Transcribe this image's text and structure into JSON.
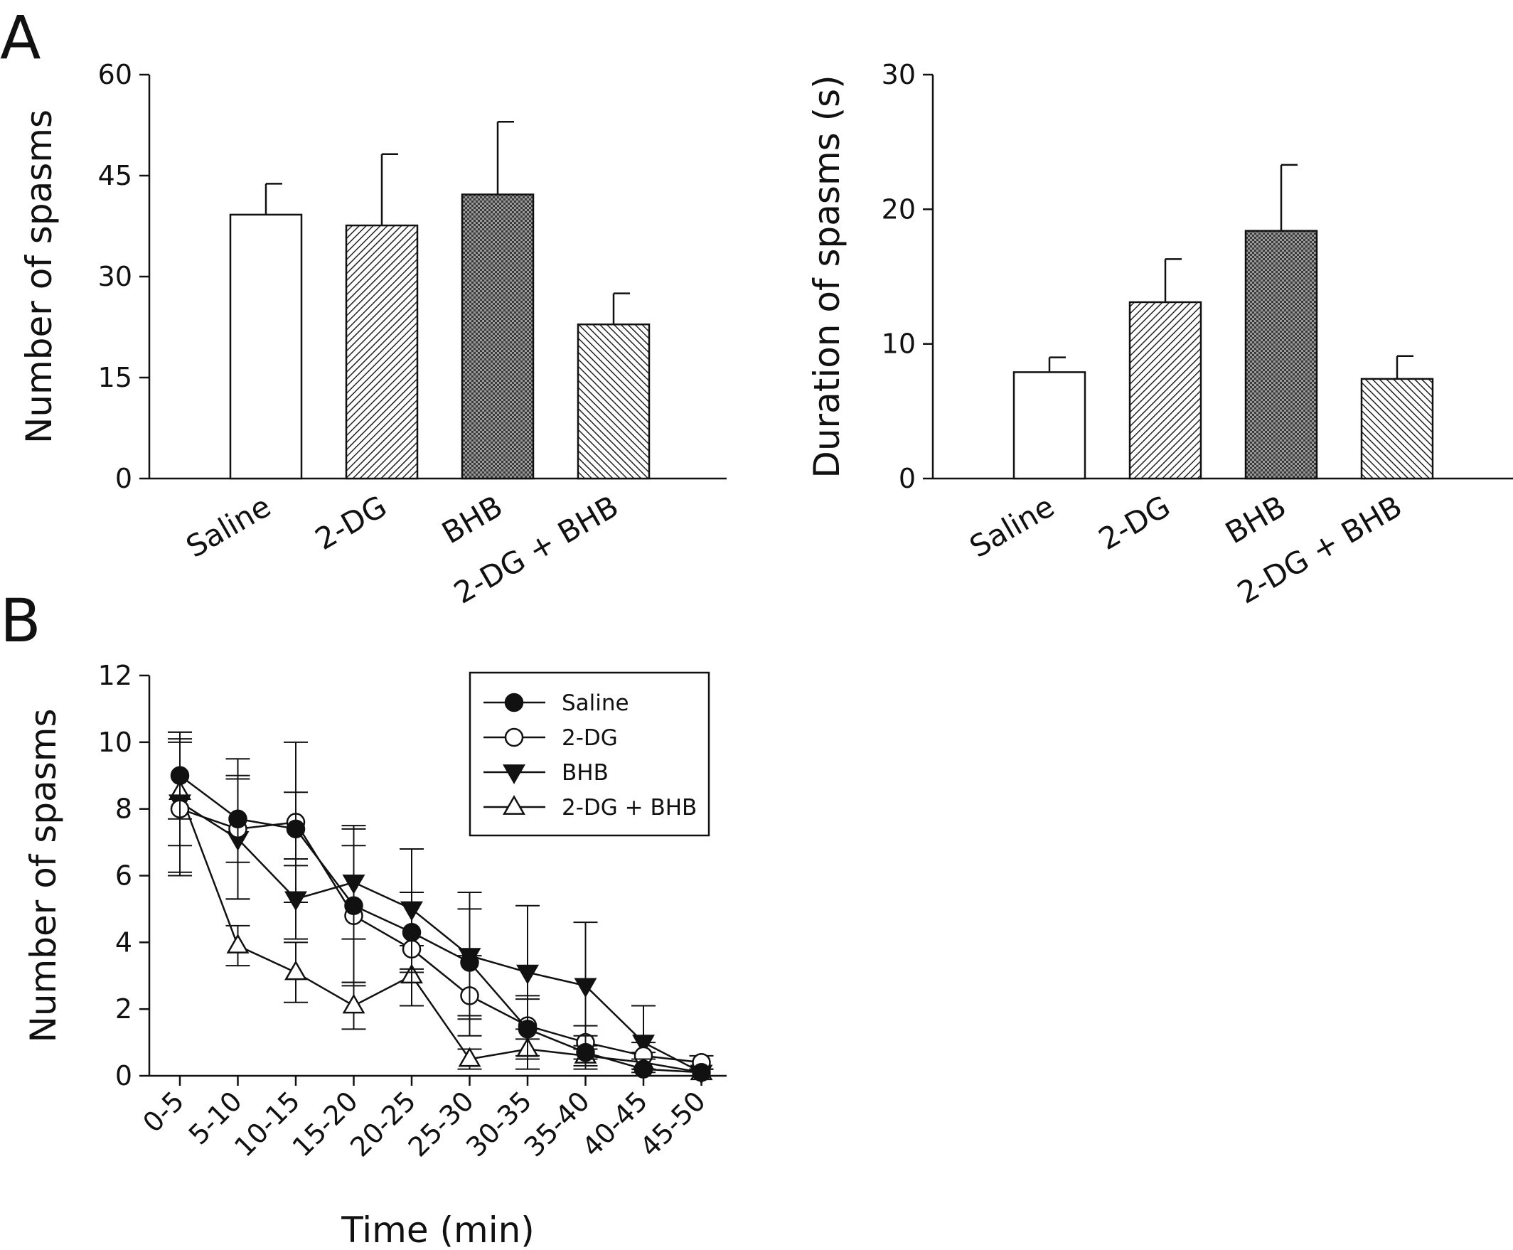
{
  "panels": {
    "a": "A",
    "b": "B"
  },
  "chart_data": [
    {
      "type": "bar",
      "categories": [
        "Saline",
        "2-DG",
        "BHB",
        "2-DG + BHB"
      ],
      "values": [
        39.2,
        37.6,
        42.2,
        22.9
      ],
      "errors": [
        4.6,
        10.6,
        10.8,
        4.6
      ],
      "patterns": [
        "none",
        "hatch-light",
        "crosshatch",
        "hatch"
      ],
      "ylabel": "Number of spasms",
      "xlabel": "",
      "ylim": [
        0,
        60
      ],
      "yticks": [
        0,
        15,
        30,
        45,
        60
      ]
    },
    {
      "type": "bar",
      "categories": [
        "Saline",
        "2-DG",
        "BHB",
        "2-DG + BHB"
      ],
      "values": [
        7.9,
        13.1,
        18.4,
        7.4
      ],
      "errors": [
        1.1,
        3.2,
        4.9,
        1.7
      ],
      "patterns": [
        "none",
        "hatch-light",
        "crosshatch",
        "hatch"
      ],
      "ylabel": "Duration of spasms (s)",
      "xlabel": "",
      "ylim": [
        0,
        30
      ],
      "yticks": [
        0,
        10,
        20,
        30
      ]
    },
    {
      "type": "line",
      "x": [
        "0-5",
        "5-10",
        "10-15",
        "15-20",
        "20-25",
        "25-30",
        "30-35",
        "35-40",
        "40-45",
        "45-50"
      ],
      "series": [
        {
          "name": "Saline",
          "marker": "circle-filled",
          "values": [
            9.0,
            7.7,
            7.4,
            5.1,
            4.3,
            3.4,
            1.4,
            0.7,
            0.2,
            0.1
          ],
          "errors": [
            1.3,
            1.3,
            1.1,
            2.3,
            1.2,
            1.6,
            0.9,
            0.5,
            0.3,
            0.1
          ]
        },
        {
          "name": "2-DG",
          "marker": "circle-open",
          "values": [
            8.0,
            7.4,
            7.6,
            4.8,
            3.8,
            2.4,
            1.5,
            1.0,
            0.6,
            0.4
          ],
          "errors": [
            2.0,
            2.1,
            2.4,
            2.1,
            1.7,
            1.2,
            0.9,
            0.5,
            0.4,
            0.2
          ]
        },
        {
          "name": "BHB",
          "marker": "triangle-down-filled",
          "values": [
            8.2,
            7.1,
            5.3,
            5.8,
            5.0,
            3.6,
            3.1,
            2.7,
            1.0,
            0.1
          ],
          "errors": [
            2.1,
            1.8,
            1.2,
            1.7,
            1.8,
            1.9,
            2.0,
            1.9,
            1.1,
            0.1
          ]
        },
        {
          "name": "2-DG + BHB",
          "marker": "triangle-up-open",
          "values": [
            8.5,
            3.9,
            3.1,
            2.1,
            3.0,
            0.5,
            0.8,
            0.6,
            0.4,
            0.1
          ],
          "errors": [
            1.6,
            0.6,
            0.9,
            0.7,
            0.9,
            0.3,
            0.6,
            0.3,
            0.3,
            0.1
          ]
        }
      ],
      "xlabel": "Time (min)",
      "ylabel": "Number of spasms",
      "ylim": [
        0,
        12
      ],
      "yticks": [
        0,
        2,
        4,
        6,
        8,
        10,
        12
      ],
      "legend": "top-right"
    }
  ]
}
